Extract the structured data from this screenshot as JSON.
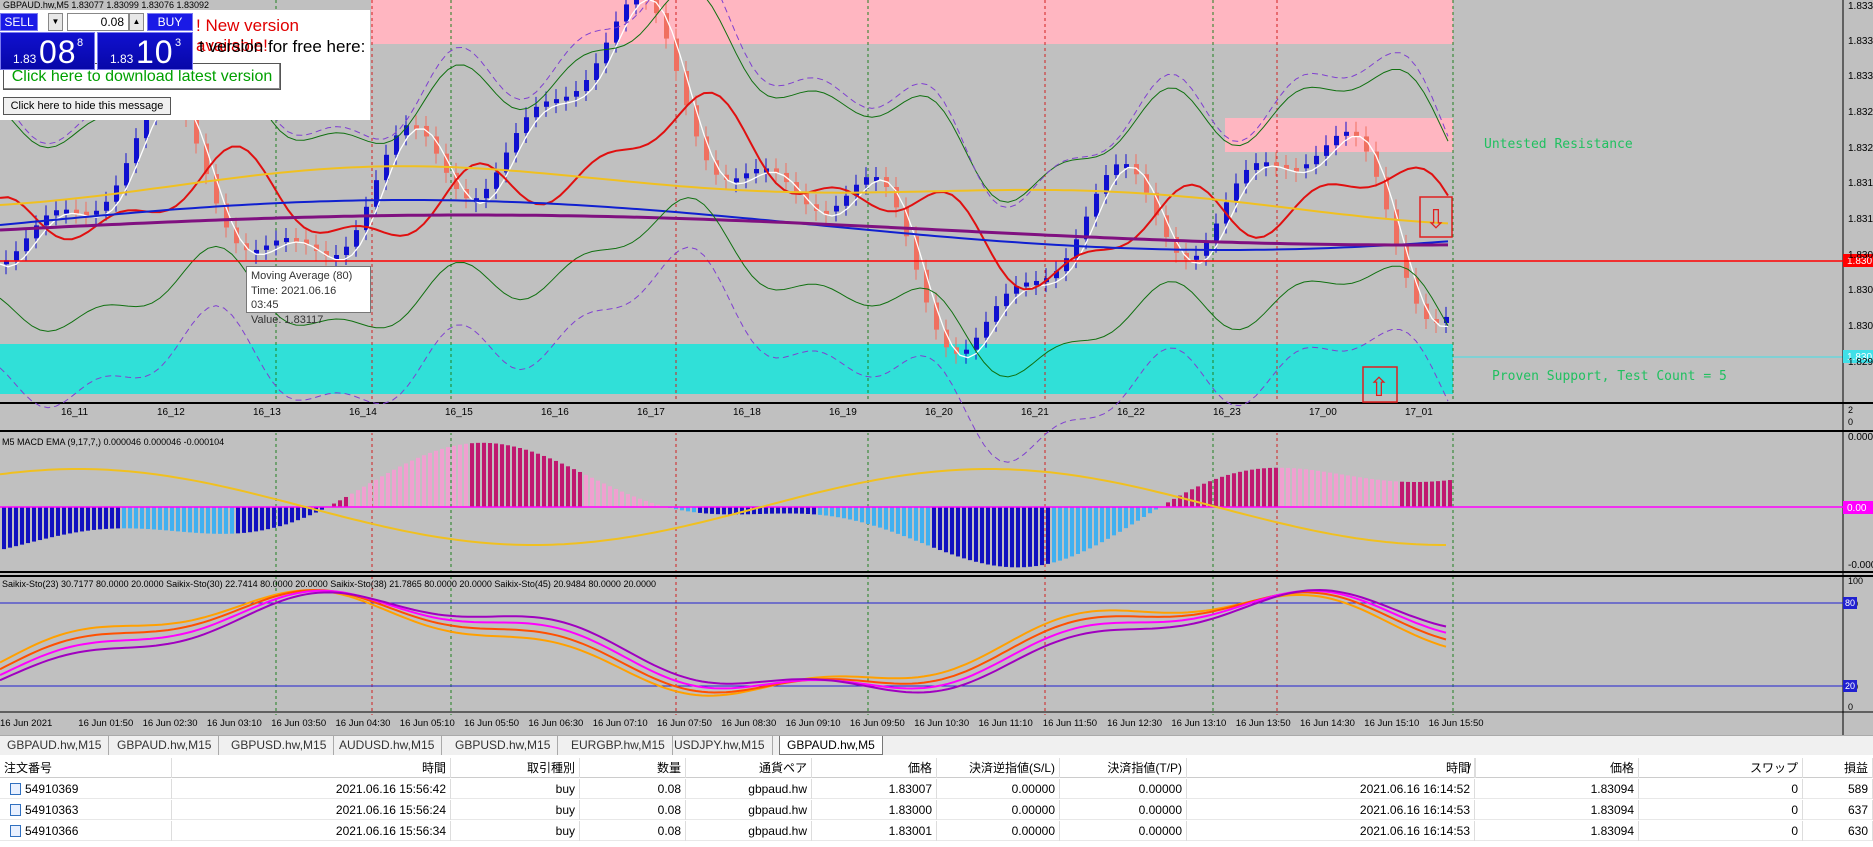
{
  "chart": {
    "header": "GBPAUD.hw,M5  1.83077 1.83099 1.83076 1.83092",
    "colors": {
      "bg": "#c0c0c0",
      "bull": "#1010d0",
      "bear": "#f07060",
      "resistance": "#ffb6c1",
      "support": "#30e0d8"
    },
    "price_ticks": [
      "1.833",
      "1.833",
      "1.833",
      "1.832",
      "1.832",
      "1.831",
      "1.831",
      "1.830",
      "1.830",
      "1.830",
      "1.829"
    ],
    "current_price_label": "1.830",
    "hline_label": "1.830",
    "time_labels_top": [
      "16_11",
      "16_12",
      "16_13",
      "16_14",
      "16_15",
      "16_16",
      "16_17",
      "16_18",
      "16_19",
      "16_20",
      "16_21",
      "16_22",
      "16_23",
      "17_00",
      "17_01"
    ],
    "untested_resistance": "Untested Resistance",
    "proven_support": "Proven Support, Test Count = 5",
    "right_small": [
      "2",
      "0"
    ],
    "macd_label": "M5 MACD EMA (9,17,7,) 0.000046 0.000046 -0.000104",
    "macd_ticks": [
      "0.0005",
      "0.00",
      "-0.0005"
    ],
    "macd_zero_label": "0.00",
    "sto_label": "Saikix-Sto(23) 30.7177 80.0000 20.0000   Saikix-Sto(30) 22.7414 80.0000 20.0000   Saikix-Sto(38) 21.7865 80.0000 20.0000   Saikix-Sto(45) 20.9484 80.0000 20.0000",
    "sto_ticks": [
      "100",
      "80",
      "20",
      "0"
    ],
    "sto_level_labels": [
      "80",
      "20"
    ],
    "time_axis": [
      "16 Jun 2021",
      "16 Jun 01:50",
      "16 Jun 02:30",
      "16 Jun 03:10",
      "16 Jun 03:50",
      "16 Jun 04:30",
      "16 Jun 05:10",
      "16 Jun 05:50",
      "16 Jun 06:30",
      "16 Jun 07:10",
      "16 Jun 07:50",
      "16 Jun 08:30",
      "16 Jun 09:10",
      "16 Jun 09:50",
      "16 Jun 10:30",
      "16 Jun 11:10",
      "16 Jun 11:50",
      "16 Jun 12:30",
      "16 Jun 13:10",
      "16 Jun 13:50",
      "16 Jun 14:30",
      "16 Jun 15:10",
      "16 Jun 15:50"
    ]
  },
  "trade_panel": {
    "sell_label": "SELL",
    "buy_label": "BUY",
    "lot": "0.08",
    "sell_small": "1.83",
    "sell_big": "08",
    "sell_sup": "8",
    "buy_small": "1.83",
    "buy_big": "10",
    "buy_sup": "3"
  },
  "notice": {
    "headline": "! New version available!",
    "line2": "t version for free here:",
    "download_button": "Click here to download latest version",
    "hide_button": "Click here to hide this message"
  },
  "tooltip": {
    "line1": "Moving Average (80)",
    "line2": "Time: 2021.06.16 03:45",
    "line3": "Value: 1.83117"
  },
  "tabs": [
    "GBPAUD.hw,M15",
    "GBPAUD.hw,M15",
    "GBPUSD.hw,M15",
    "AUDUSD.hw,M15",
    "GBPUSD.hw,M15",
    "EURGBP.hw,M15",
    "USDJPY.hw,M15",
    "GBPAUD.hw,M5"
  ],
  "orders": {
    "columns": [
      "注文番号",
      "時間",
      "取引種別",
      "数量",
      "通貨ペア",
      "価格",
      "決済逆指値(S/L)",
      "決済指値(T/P)",
      "時間",
      "/",
      "価格",
      "スワップ",
      "損益"
    ],
    "rows": [
      [
        "54910369",
        "2021.06.16 15:56:42",
        "buy",
        "0.08",
        "gbpaud.hw",
        "1.83007",
        "0.00000",
        "0.00000",
        "2021.06.16 16:14:52",
        "1.83094",
        "0",
        "589"
      ],
      [
        "54910363",
        "2021.06.16 15:56:24",
        "buy",
        "0.08",
        "gbpaud.hw",
        "1.83000",
        "0.00000",
        "0.00000",
        "2021.06.16 16:14:53",
        "1.83094",
        "0",
        "637"
      ],
      [
        "54910366",
        "2021.06.16 15:56:34",
        "buy",
        "0.08",
        "gbpaud.hw",
        "1.83001",
        "0.00000",
        "0.00000",
        "2021.06.16 16:14:53",
        "1.83094",
        "0",
        "630"
      ]
    ]
  }
}
